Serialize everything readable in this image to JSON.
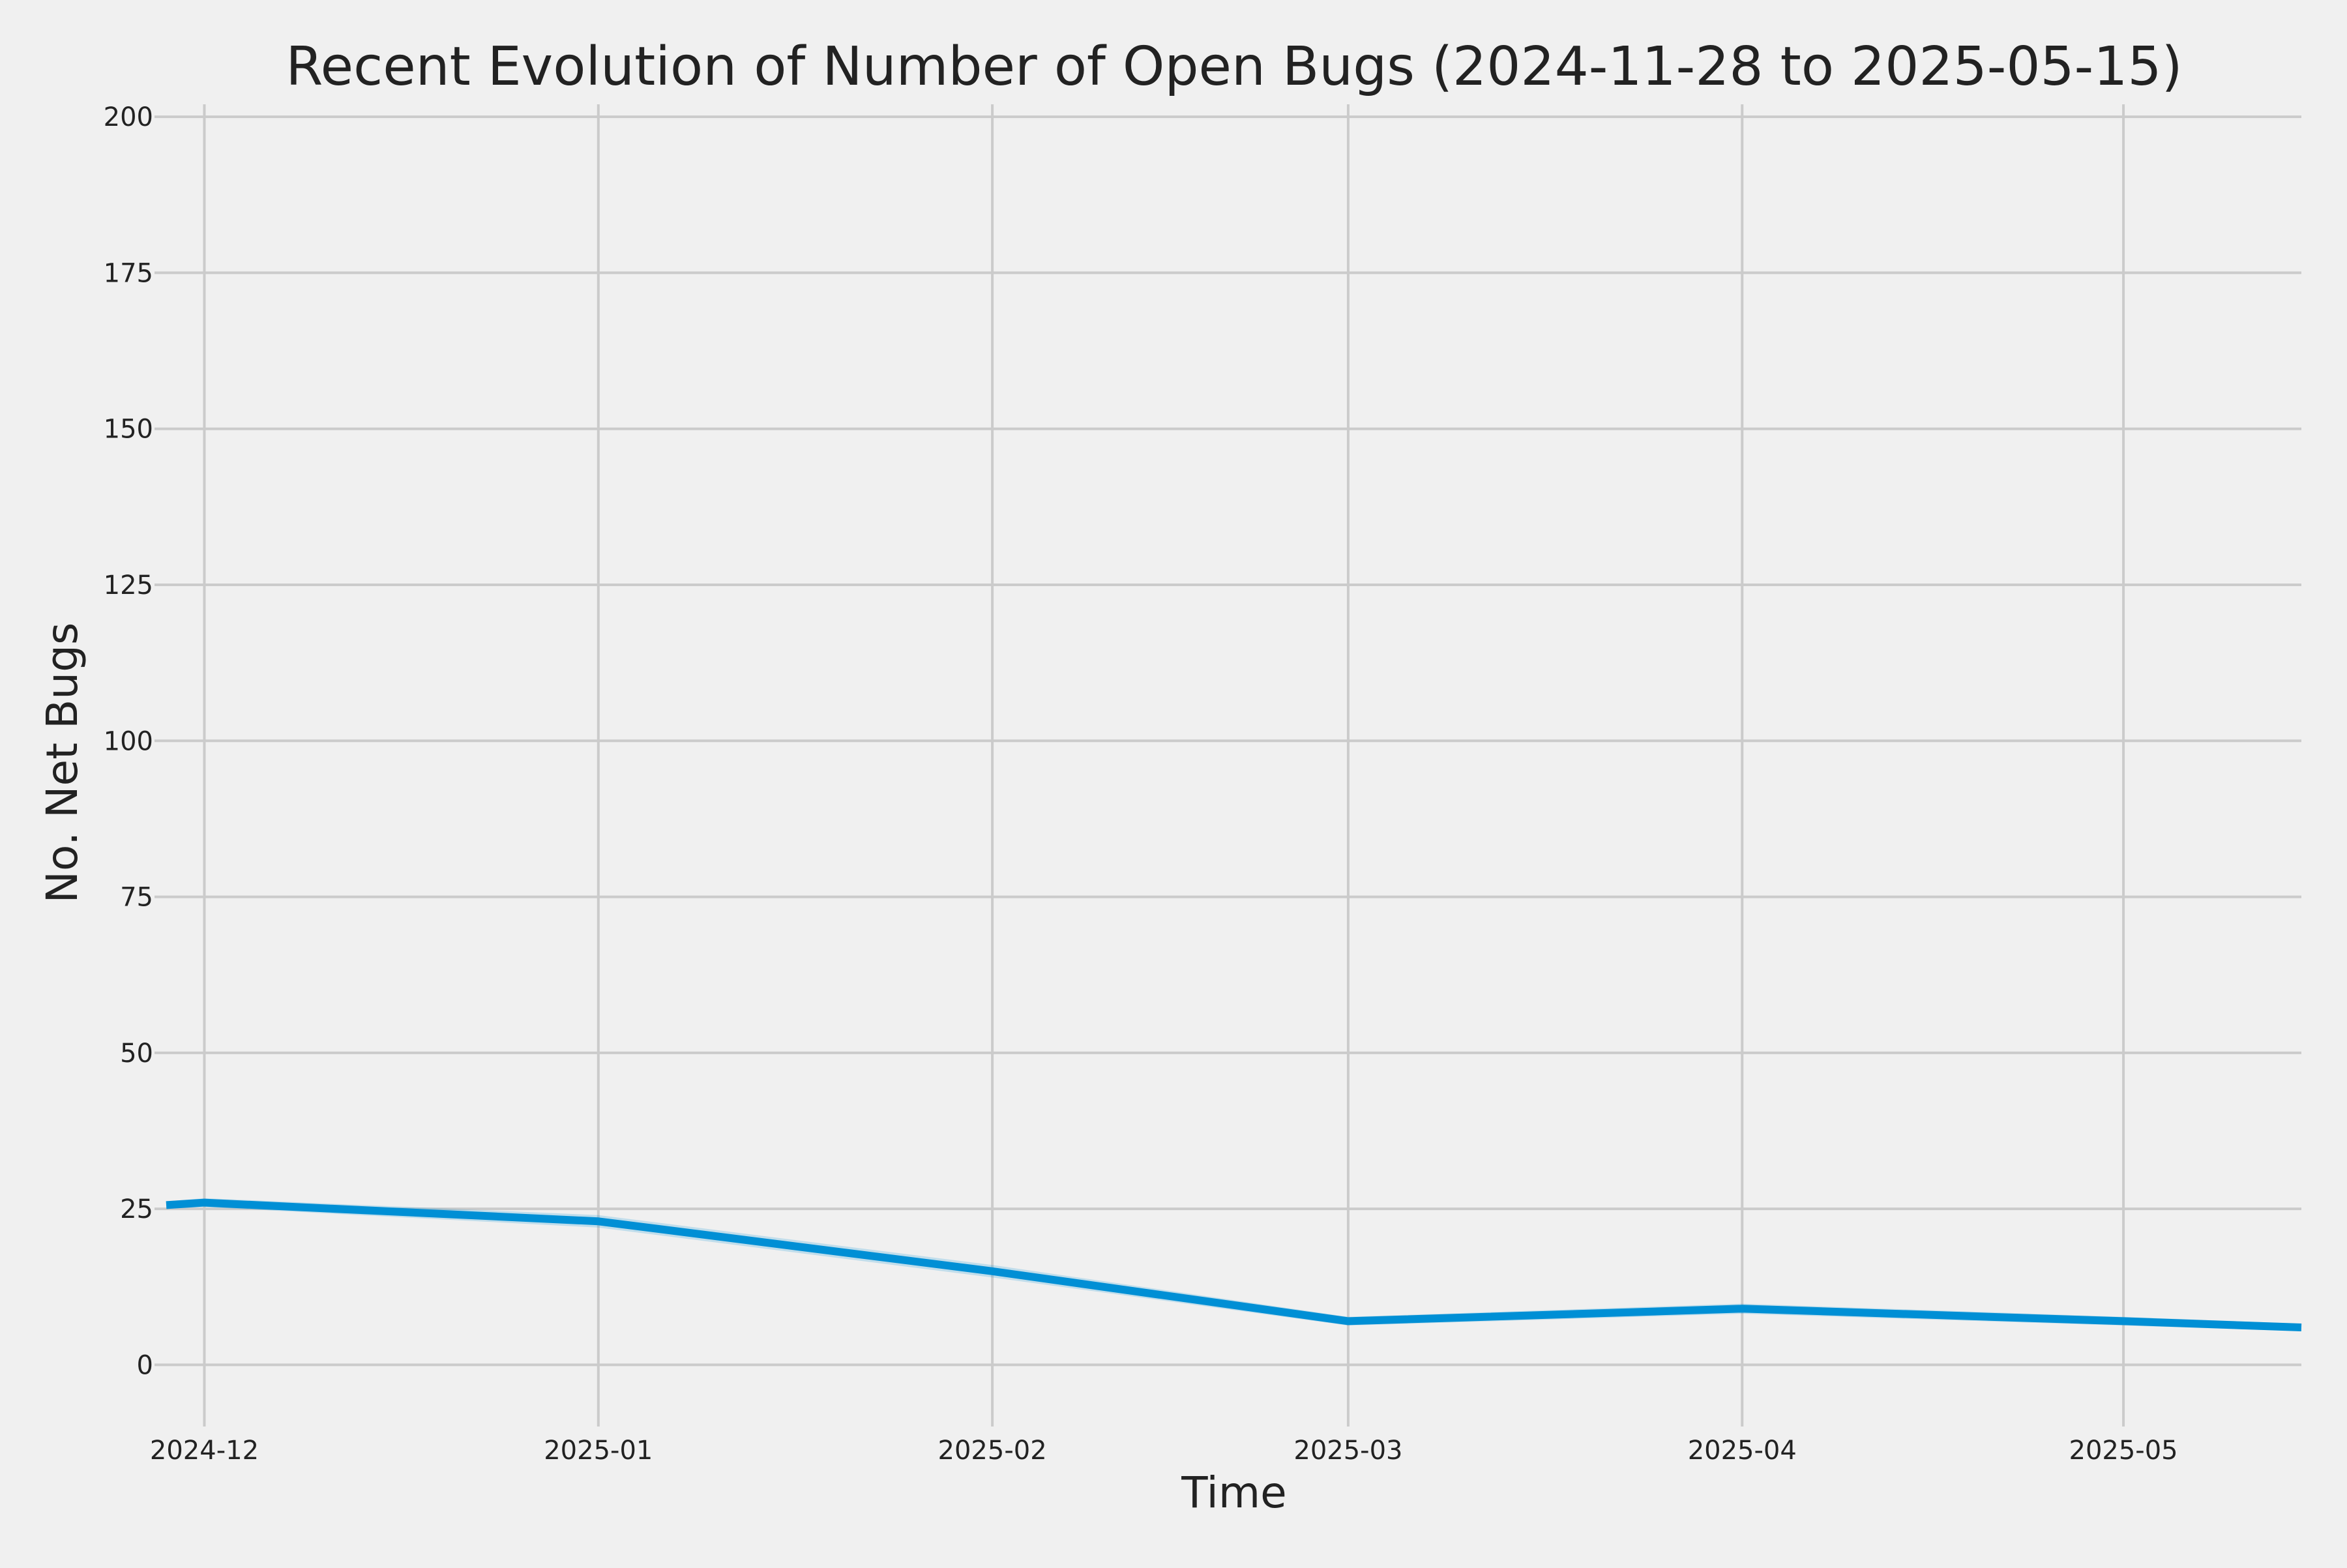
{
  "chart_data": {
    "type": "line",
    "title": "Recent Evolution of Number of Open Bugs (2024-11-28 to 2025-05-15)",
    "xlabel": "Time",
    "ylabel": "No. Net Bugs",
    "x_domain": [
      "2024-11-28",
      "2025-05-15"
    ],
    "ylim": [
      -8,
      202
    ],
    "y_ticks": [
      0,
      25,
      50,
      75,
      100,
      125,
      150,
      175,
      200
    ],
    "x_ticks": [
      {
        "date": "2024-12-01",
        "label": "2024-12"
      },
      {
        "date": "2025-01-01",
        "label": "2025-01"
      },
      {
        "date": "2025-02-01",
        "label": "2025-02"
      },
      {
        "date": "2025-03-01",
        "label": "2025-03"
      },
      {
        "date": "2025-04-01",
        "label": "2025-04"
      },
      {
        "date": "2025-05-01",
        "label": "2025-05"
      }
    ],
    "grid": true,
    "series": [
      {
        "color": "#008fd5",
        "x": [
          "2024-11-28",
          "2024-12-01",
          "2025-01-01",
          "2025-02-01",
          "2025-03-01",
          "2025-04-01",
          "2025-05-01",
          "2025-05-15"
        ],
        "y": [
          25.6,
          26,
          23,
          15,
          7,
          9,
          7,
          6
        ]
      }
    ],
    "confidence_band": {
      "color": "#008fd5",
      "x": [
        "2024-11-28",
        "2024-12-01",
        "2025-01-01",
        "2025-02-01",
        "2025-03-01",
        "2025-04-01",
        "2025-05-01",
        "2025-05-15"
      ],
      "lower": [
        25.0,
        25.3,
        22.0,
        14.0,
        6.3,
        8.2,
        6.3,
        5.4
      ],
      "upper": [
        26.2,
        26.7,
        24.0,
        16.0,
        7.7,
        9.8,
        7.7,
        6.6
      ]
    },
    "background_color": "#f0f0f0",
    "grid_color": "#cbcbcb"
  }
}
